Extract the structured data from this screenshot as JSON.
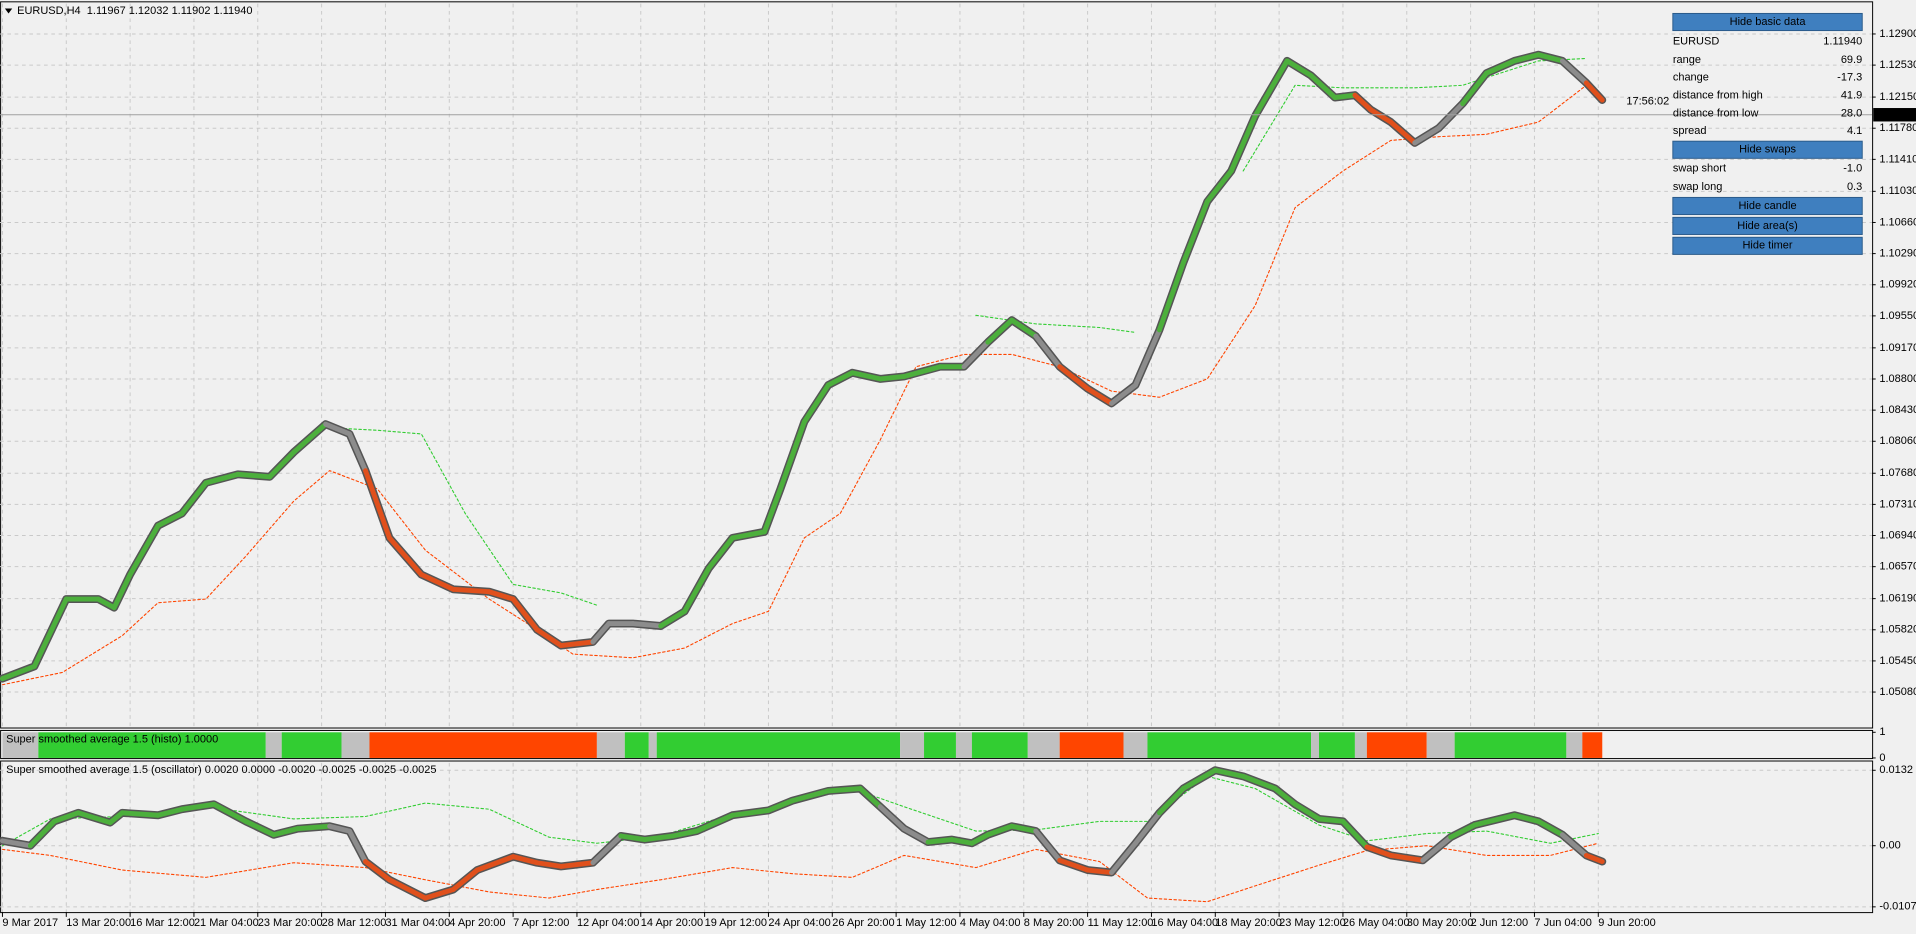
{
  "chart_data": [
    {
      "type": "line",
      "title": "EURUSD,H4  1.11967 1.12032 1.11902 1.11940",
      "xlim": [
        0,
        468
      ],
      "xticks": [
        {
          "value": 0,
          "label": "9 Mar 2017"
        },
        {
          "value": 16,
          "label": "13 Mar 20:00"
        },
        {
          "value": 32,
          "label": "16 Mar 12:00"
        },
        {
          "value": 48,
          "label": "21 Mar 04:00"
        },
        {
          "value": 64,
          "label": "23 Mar 20:00"
        },
        {
          "value": 80,
          "label": "28 Mar 12:00"
        },
        {
          "value": 96,
          "label": "31 Mar 04:00"
        },
        {
          "value": 112,
          "label": "4 Apr 20:00"
        },
        {
          "value": 128,
          "label": "7 Apr 12:00"
        },
        {
          "value": 144,
          "label": "12 Apr 04:00"
        },
        {
          "value": 160,
          "label": "14 Apr 20:00"
        },
        {
          "value": 176,
          "label": "19 Apr 12:00"
        },
        {
          "value": 192,
          "label": "24 Apr 04:00"
        },
        {
          "value": 208,
          "label": "26 Apr 20:00"
        },
        {
          "value": 224,
          "label": "1 May 12:00"
        },
        {
          "value": 240,
          "label": "4 May 04:00"
        },
        {
          "value": 256,
          "label": "8 May 20:00"
        },
        {
          "value": 272,
          "label": "11 May 12:00"
        },
        {
          "value": 288,
          "label": "16 May 04:00"
        },
        {
          "value": 304,
          "label": "18 May 20:00"
        },
        {
          "value": 320,
          "label": "23 May 12:00"
        },
        {
          "value": 336,
          "label": "26 May 04:00"
        },
        {
          "value": 352,
          "label": "30 May 20:00"
        },
        {
          "value": 368,
          "label": "2 Jun 12:00"
        },
        {
          "value": 384,
          "label": "7 Jun 04:00"
        },
        {
          "value": 400,
          "label": "9 Jun 20:00"
        }
      ],
      "ylim": [
        1.0466,
        1.1326
      ],
      "yticks": [
        {
          "value": 1.129,
          "label": "1.12900"
        },
        {
          "value": 1.1253,
          "label": "1.12530"
        },
        {
          "value": 1.1215,
          "label": "1.12150"
        },
        {
          "value": 1.1178,
          "label": "1.11780"
        },
        {
          "value": 1.1141,
          "label": "1.11410"
        },
        {
          "value": 1.1103,
          "label": "1.11030"
        },
        {
          "value": 1.1066,
          "label": "1.10660"
        },
        {
          "value": 1.1029,
          "label": "1.10290"
        },
        {
          "value": 1.0992,
          "label": "1.09920"
        },
        {
          "value": 1.0955,
          "label": "1.09550"
        },
        {
          "value": 1.0917,
          "label": "1.09170"
        },
        {
          "value": 1.088,
          "label": "1.08800"
        },
        {
          "value": 1.0843,
          "label": "1.08430"
        },
        {
          "value": 1.0806,
          "label": "1.08060"
        },
        {
          "value": 1.0768,
          "label": "1.07680"
        },
        {
          "value": 1.0731,
          "label": "1.07310"
        },
        {
          "value": 1.0694,
          "label": "1.06940"
        },
        {
          "value": 1.0657,
          "label": "1.06570"
        },
        {
          "value": 1.0619,
          "label": "1.06190"
        },
        {
          "value": 1.0582,
          "label": "1.05820"
        },
        {
          "value": 1.0545,
          "label": "1.05450"
        },
        {
          "value": 1.0508,
          "label": "1.05080"
        }
      ],
      "grid": true,
      "current_price": {
        "value": 1.1194,
        "label": "1.11940"
      },
      "timer": "17:56:02",
      "timer_color": "#e8607a",
      "series": [
        {
          "line_style": "dotted",
          "color": "#ff4500",
          "x": [
            0,
            15,
            30,
            39,
            51,
            61,
            73,
            82,
            94,
            106,
            122,
            134,
            143,
            158,
            171,
            183,
            192,
            201,
            210,
            220,
            229,
            241,
            253,
            265,
            278,
            290,
            302,
            314,
            324,
            336,
            348,
            360,
            372,
            385,
            397
          ],
          "values": [
            1.05167,
            1.05313,
            1.05749,
            1.06141,
            1.06185,
            1.06694,
            1.07348,
            1.07711,
            1.07493,
            1.06766,
            1.06185,
            1.05821,
            1.05531,
            1.05487,
            1.05603,
            1.05894,
            1.06039,
            1.06912,
            1.07202,
            1.08074,
            1.08946,
            1.09092,
            1.09092,
            1.08946,
            1.08656,
            1.08583,
            1.08801,
            1.09673,
            1.10836,
            1.11272,
            1.11635,
            1.11679,
            1.11708,
            1.11853,
            1.1229
          ]
        },
        {
          "line_style": "dotted",
          "color": "#32cd32",
          "x": [
            82,
            94,
            105,
            116,
            128,
            140,
            149,
            null,
            244,
            259,
            275,
            284,
            null,
            311,
            324,
            336,
            354,
            366,
            385,
            397
          ],
          "values": [
            1.0822,
            1.08191,
            1.08147,
            1.07202,
            1.06359,
            1.06258,
            1.06112,
            null,
            1.09557,
            1.09455,
            1.09412,
            1.09353,
            null,
            1.11272,
            1.1229,
            1.1226,
            1.1226,
            1.1229,
            1.1258,
            1.12609
          ]
        },
        {
          "line_style": "solid",
          "color": "#555555",
          "x": [
            0,
            8,
            16,
            24,
            28,
            32,
            39,
            45,
            51,
            59,
            67,
            73,
            81,
            87,
            91,
            97,
            105,
            113,
            122,
            128,
            134,
            140,
            148,
            152,
            158,
            165,
            171,
            177,
            183,
            191,
            195,
            201,
            207,
            213,
            220,
            226,
            235,
            241,
            247,
            253,
            259,
            265,
            272,
            278,
            284,
            290,
            296,
            302,
            308,
            314,
            322,
            328,
            334,
            339,
            343,
            348,
            354,
            360,
            366,
            372,
            379,
            385,
            391,
            397,
            401
          ],
          "values": [
            1.0524,
            1.05385,
            1.06185,
            1.06185,
            1.06083,
            1.06476,
            1.07057,
            1.07202,
            1.07566,
            1.07667,
            1.07638,
            1.07929,
            1.08263,
            1.08147,
            1.07711,
            1.06912,
            1.06476,
            1.06301,
            1.06272,
            1.06185,
            1.05821,
            1.05632,
            1.05676,
            1.05894,
            1.05894,
            1.05865,
            1.06039,
            1.06548,
            1.06912,
            1.06984,
            1.07493,
            1.08292,
            1.08728,
            1.08874,
            1.08801,
            1.0883,
            1.08946,
            1.08946,
            1.09237,
            1.09499,
            1.0931,
            1.08946,
            1.08685,
            1.0851,
            1.08728,
            1.09383,
            1.10182,
            1.10909,
            1.11272,
            1.11926,
            1.1258,
            1.12406,
            1.12144,
            1.12173,
            1.11999,
            1.11853,
            1.11606,
            1.11781,
            1.12072,
            1.12435,
            1.1258,
            1.12653,
            1.1258,
            1.12319,
            1.12115
          ],
          "point_colors": [
            "#4caf3c",
            "#4caf3c",
            "#4caf3c",
            "#4caf3c",
            "#4caf3c",
            "#4caf3c",
            "#4caf3c",
            "#4caf3c",
            "#4caf3c",
            "#4caf3c",
            "#4caf3c",
            "#4caf3c",
            "#8c8c8c",
            "#8c8c8c",
            "#e0501c",
            "#e0501c",
            "#e0501c",
            "#e0501c",
            "#e0501c",
            "#e0501c",
            "#e0501c",
            "#e0501c",
            "#8c8c8c",
            "#8c8c8c",
            "#8c8c8c",
            "#4caf3c",
            "#4caf3c",
            "#4caf3c",
            "#4caf3c",
            "#4caf3c",
            "#4caf3c",
            "#4caf3c",
            "#4caf3c",
            "#4caf3c",
            "#4caf3c",
            "#4caf3c",
            "#4caf3c",
            "#8c8c8c",
            "#4caf3c",
            "#4caf3c",
            "#8c8c8c",
            "#e0501c",
            "#e0501c",
            "#8c8c8c",
            "#8c8c8c",
            "#4caf3c",
            "#4caf3c",
            "#4caf3c",
            "#4caf3c",
            "#4caf3c",
            "#4caf3c",
            "#4caf3c",
            "#4caf3c",
            "#e0501c",
            "#e0501c",
            "#e0501c",
            "#8c8c8c",
            "#8c8c8c",
            "#4caf3c",
            "#4caf3c",
            "#4caf3c",
            "#4caf3c",
            "#8c8c8c",
            "#e0501c",
            "#e0501c"
          ]
        }
      ]
    },
    {
      "type": "histogram",
      "title": "Super smoothed average 1.5 (histo) 1.0000",
      "xlim": [
        0,
        468
      ],
      "ylim": [
        0,
        1
      ],
      "yticks": [
        1,
        0
      ],
      "bins": [
        0,
        9,
        66,
        70,
        85,
        92,
        149,
        156,
        162,
        164,
        225,
        231,
        239,
        243,
        257,
        265,
        281,
        287,
        328,
        330,
        339,
        342,
        357,
        364,
        392,
        396,
        401
      ],
      "values": [
        1,
        1,
        1,
        1,
        1,
        1,
        1,
        1,
        1,
        1,
        1,
        1,
        1,
        1,
        1,
        1,
        1,
        1,
        1,
        1,
        1,
        1,
        1,
        1,
        1,
        1
      ],
      "colors": [
        "#c0c0c0",
        "#32cd32",
        "#c0c0c0",
        "#32cd32",
        "#c0c0c0",
        "#ff4500",
        "#c0c0c0",
        "#32cd32",
        "#c0c0c0",
        "#32cd32",
        "#c0c0c0",
        "#32cd32",
        "#c0c0c0",
        "#32cd32",
        "#c0c0c0",
        "#ff4500",
        "#c0c0c0",
        "#32cd32",
        "#c0c0c0",
        "#32cd32",
        "#c0c0c0",
        "#ff4500",
        "#c0c0c0",
        "#32cd32",
        "#c0c0c0",
        "#ff4500"
      ]
    },
    {
      "type": "line",
      "title": "Super smoothed average 1.5 (oscillator) 0.0020 0.0000 -0.0020 -0.0025 -0.0025 -0.0025",
      "xlim": [
        0,
        468
      ],
      "ylim": [
        -0.0116,
        0.0145
      ],
      "yticks": [
        0.0132,
        {
          "value": 0,
          "label": "0.00"
        },
        -0.0107
      ],
      "grid": true,
      "series": [
        {
          "line_style": "dotted",
          "color": "#32cd32",
          "x": [
            0,
            12,
            30,
            51,
            73,
            91,
            106,
            122,
            137,
            149,
            165,
            183,
            198,
            213,
            226,
            244,
            259,
            275,
            287,
            302,
            314,
            330,
            342,
            357,
            372,
            388,
            400
          ],
          "values": [
            0,
            0.00469,
            0.00511,
            0.00682,
            0.00469,
            0.00511,
            0.00746,
            0.00639,
            0.00149,
            0.00043,
            0.0017,
            0.00554,
            0.00746,
            0.01001,
            0.00682,
            0.00256,
            0.00277,
            0.00426,
            0.00426,
            0.01214,
            0.01001,
            0.00362,
            0.00085,
            0.00213,
            0.00256,
            0.00043,
            0.00213
          ]
        },
        {
          "line_style": "dotted",
          "color": "#ff4500",
          "x": [
            0,
            12,
            30,
            51,
            73,
            91,
            106,
            122,
            137,
            149,
            165,
            183,
            198,
            213,
            226,
            244,
            259,
            275,
            287,
            302,
            314,
            330,
            342,
            357,
            372,
            388,
            400
          ],
          "values": [
            -0.00064,
            -0.0017,
            -0.00426,
            -0.00554,
            -0.00298,
            -0.00383,
            -0.00596,
            -0.00809,
            -0.00916,
            -0.00767,
            -0.00596,
            -0.00383,
            -0.0049,
            -0.00554,
            -0.0017,
            -0.00383,
            -0.00064,
            -0.00277,
            -0.00916,
            -0.0098,
            -0.00703,
            -0.00341,
            -0.00085,
            0,
            -0.0017,
            -0.0017,
            0.00043
          ]
        },
        {
          "line_style": "solid",
          "color": "#555555",
          "x": [
            0,
            7,
            13,
            19,
            27,
            30,
            39,
            45,
            53,
            61,
            68,
            74,
            82,
            87,
            91,
            97,
            106,
            113,
            119,
            128,
            134,
            140,
            148,
            155,
            161,
            168,
            174,
            183,
            192,
            198,
            207,
            215,
            220,
            226,
            232,
            238,
            243,
            247,
            253,
            259,
            265,
            272,
            278,
            284,
            290,
            296,
            304,
            311,
            319,
            324,
            330,
            336,
            342,
            348,
            356,
            363,
            369,
            379,
            385,
            391,
            397,
            401
          ],
          "values": [
            0.00085,
            0,
            0.00426,
            0.00575,
            0.00405,
            0.00575,
            0.00533,
            0.00639,
            0.00724,
            0.00426,
            0.00192,
            0.00298,
            0.00341,
            0.00256,
            -0.00277,
            -0.00596,
            -0.00916,
            -0.00767,
            -0.00426,
            -0.00192,
            -0.00298,
            -0.00362,
            -0.00298,
            0.0017,
            0.00107,
            0.0017,
            0.00256,
            0.00533,
            0.00618,
            0.00788,
            0.00959,
            0.01001,
            0.00682,
            0.00298,
            0.00064,
            0.00107,
            0.00043,
            0.00192,
            0.00341,
            0.00256,
            -0.00256,
            -0.00426,
            -0.00469,
            0.00043,
            0.00575,
            0.01001,
            0.01321,
            0.01214,
            0.01001,
            0.00724,
            0.00469,
            0.00426,
            -0.00021,
            -0.0017,
            -0.00256,
            0.00149,
            0.00362,
            0.00533,
            0.00426,
            0.00192,
            -0.0017,
            -0.00277
          ],
          "point_colors": [
            "#8c8c8c",
            "#4caf3c",
            "#4caf3c",
            "#4caf3c",
            "#4caf3c",
            "#4caf3c",
            "#4caf3c",
            "#4caf3c",
            "#4caf3c",
            "#4caf3c",
            "#4caf3c",
            "#4caf3c",
            "#8c8c8c",
            "#8c8c8c",
            "#e0501c",
            "#e0501c",
            "#e0501c",
            "#e0501c",
            "#e0501c",
            "#e0501c",
            "#e0501c",
            "#e0501c",
            "#8c8c8c",
            "#4caf3c",
            "#4caf3c",
            "#4caf3c",
            "#4caf3c",
            "#4caf3c",
            "#4caf3c",
            "#4caf3c",
            "#4caf3c",
            "#4caf3c",
            "#8c8c8c",
            "#8c8c8c",
            "#4caf3c",
            "#4caf3c",
            "#4caf3c",
            "#4caf3c",
            "#4caf3c",
            "#8c8c8c",
            "#e0501c",
            "#e0501c",
            "#8c8c8c",
            "#8c8c8c",
            "#4caf3c",
            "#4caf3c",
            "#4caf3c",
            "#4caf3c",
            "#4caf3c",
            "#4caf3c",
            "#4caf3c",
            "#4caf3c",
            "#e0501c",
            "#e0501c",
            "#8c8c8c",
            "#4caf3c",
            "#4caf3c",
            "#4caf3c",
            "#4caf3c",
            "#8c8c8c",
            "#e0501c",
            "#e0501c"
          ]
        }
      ]
    }
  ],
  "info_panel": {
    "basic_button": "Hide basic data",
    "symbol": {
      "text": "EURUSD",
      "color": "#3a78c0"
    },
    "price": {
      "text": "1.11940",
      "color": "#e8607a"
    },
    "rows": [
      {
        "label": "range",
        "value": "69.9",
        "color": "#3cb371"
      },
      {
        "label": "change",
        "value": "-17.3",
        "color": "#e8607a"
      },
      {
        "label": "distance from high",
        "value": "41.9",
        "color": "#3cb371"
      },
      {
        "label": "distance from low",
        "value": "28.0",
        "color": "#3cb371"
      },
      {
        "label": "spread",
        "value": "4.1",
        "color": "#3cb371"
      }
    ],
    "swaps_button": "Hide swaps",
    "swaps": [
      {
        "label": "swap short",
        "value": "-1.0",
        "color": "#e8607a"
      },
      {
        "label": "swap long",
        "value": "0.3",
        "color": "#3cb371"
      }
    ],
    "buttons": [
      "Hide candle",
      "Hide area(s)",
      "Hide timer"
    ]
  }
}
